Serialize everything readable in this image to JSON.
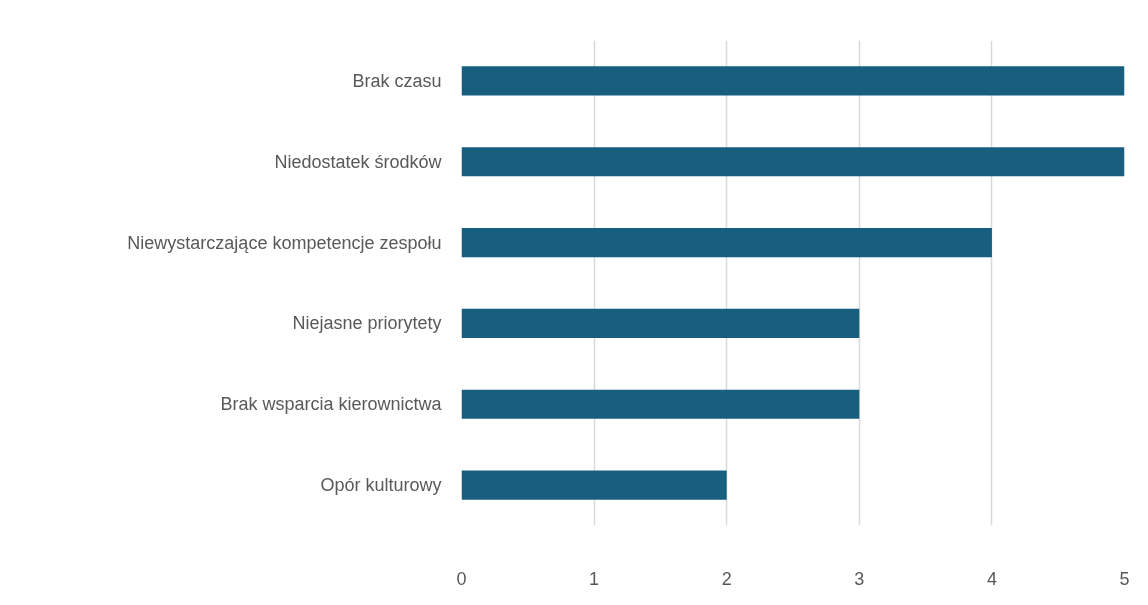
{
  "chart_data": {
    "type": "bar",
    "orientation": "horizontal",
    "categories": [
      "Brak czasu",
      "Niedostatek środków",
      "Niewystarczające kompetencje zespołu",
      "Niejasne priorytety",
      "Brak wsparcia kierownictwa",
      "Opór kulturowy"
    ],
    "values": [
      5,
      5,
      4,
      3,
      3,
      2
    ],
    "color": "#175e7f",
    "xlim": [
      0,
      5
    ],
    "xticks": [
      0,
      1,
      2,
      3,
      4,
      5
    ],
    "grid": "x"
  }
}
